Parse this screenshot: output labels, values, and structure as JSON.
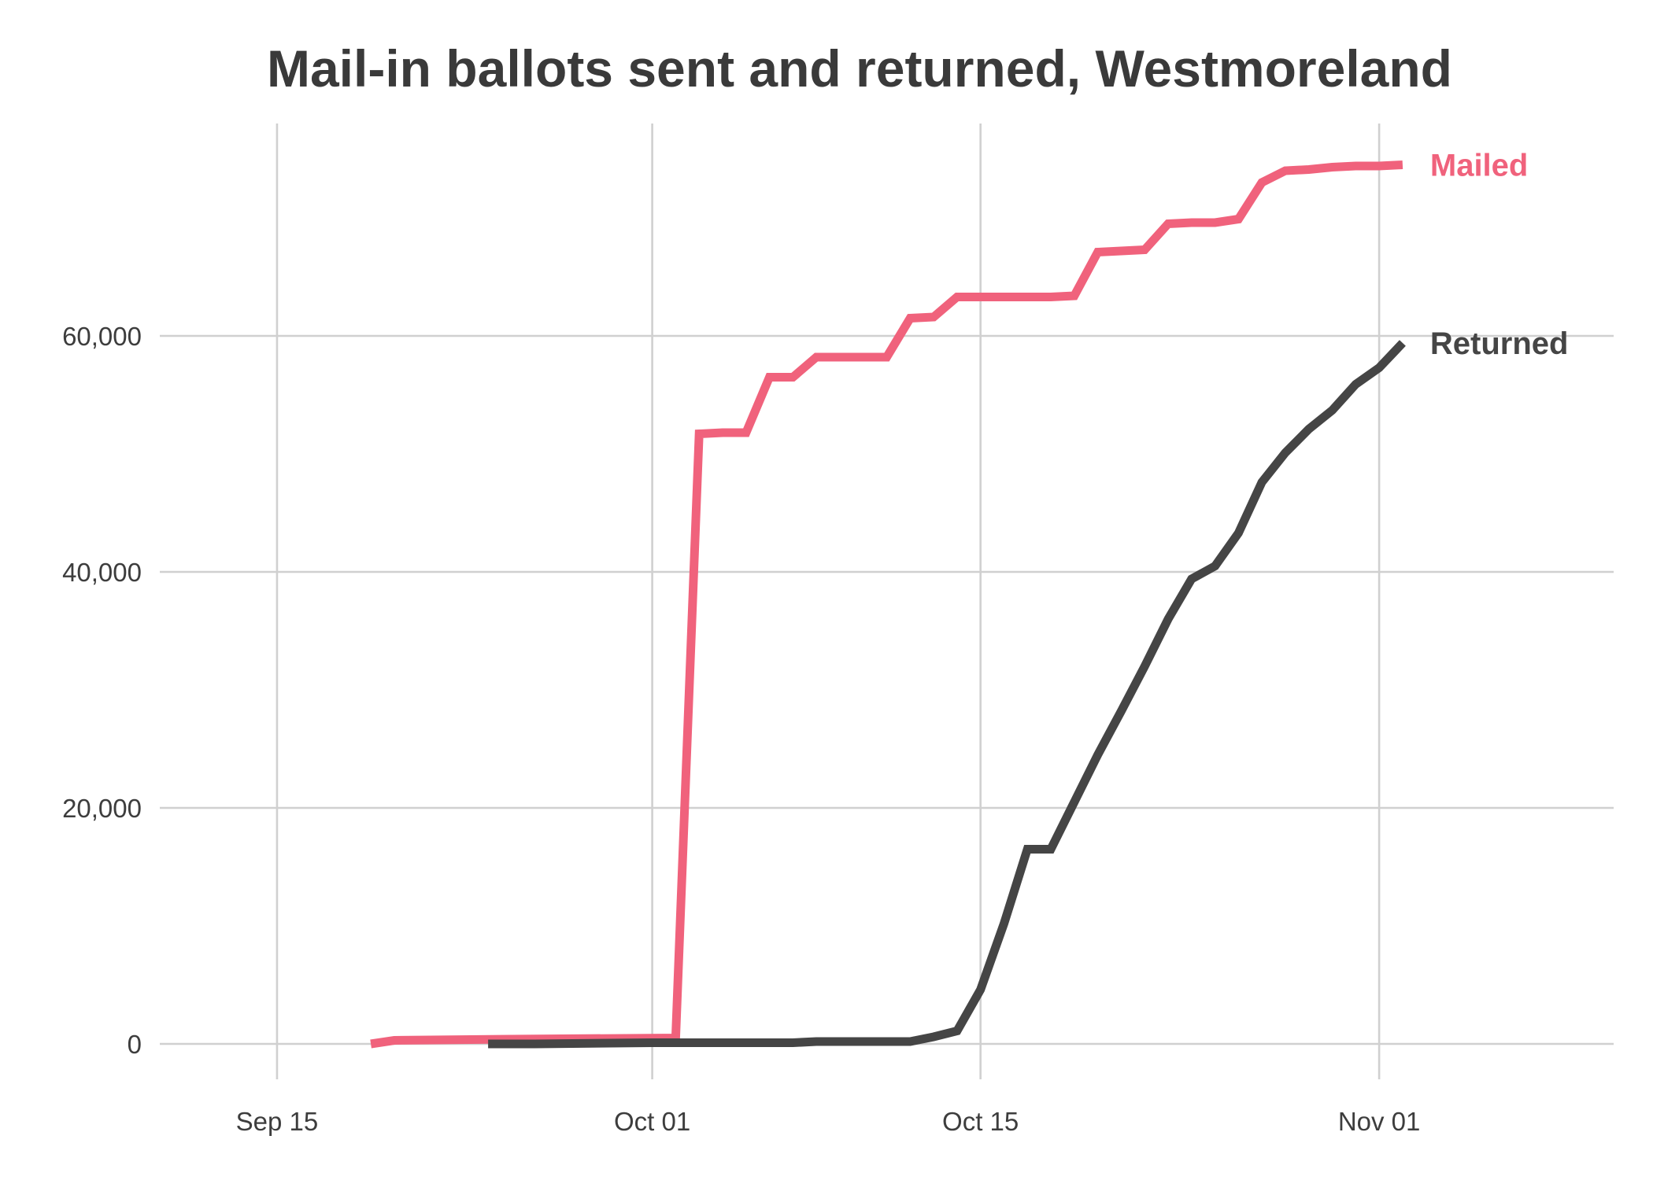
{
  "colors": {
    "mailed": "#f0627c",
    "returned": "#454545"
  },
  "chart_data": {
    "type": "line",
    "title": "Mail-in ballots sent and returned, Westmoreland",
    "xlabel": "",
    "ylabel": "",
    "x_is_date": true,
    "xlim": [
      "2020-09-10",
      "2020-11-11"
    ],
    "ylim": [
      -3000,
      78000
    ],
    "grid": true,
    "legend": "direct-labels-right",
    "x_ticks": [
      {
        "value": "2020-09-15",
        "label": "Sep 15"
      },
      {
        "value": "2020-10-01",
        "label": "Oct 01"
      },
      {
        "value": "2020-10-15",
        "label": "Oct 15"
      },
      {
        "value": "2020-11-01",
        "label": "Nov 01"
      }
    ],
    "y_ticks": [
      {
        "value": 0,
        "label": "0"
      },
      {
        "value": 20000,
        "label": "20,000"
      },
      {
        "value": 40000,
        "label": "40,000"
      },
      {
        "value": 60000,
        "label": "60,000"
      }
    ],
    "series": [
      {
        "name": "Mailed",
        "color": "#f0627c",
        "points": [
          {
            "x": "2020-09-19",
            "y": 0
          },
          {
            "x": "2020-09-20",
            "y": 300
          },
          {
            "x": "2020-09-25",
            "y": 400
          },
          {
            "x": "2020-10-02",
            "y": 500
          },
          {
            "x": "2020-10-03",
            "y": 51700
          },
          {
            "x": "2020-10-04",
            "y": 51800
          },
          {
            "x": "2020-10-05",
            "y": 51800
          },
          {
            "x": "2020-10-06",
            "y": 56500
          },
          {
            "x": "2020-10-07",
            "y": 56500
          },
          {
            "x": "2020-10-08",
            "y": 58200
          },
          {
            "x": "2020-10-09",
            "y": 58200
          },
          {
            "x": "2020-10-10",
            "y": 58200
          },
          {
            "x": "2020-10-11",
            "y": 58200
          },
          {
            "x": "2020-10-12",
            "y": 61500
          },
          {
            "x": "2020-10-13",
            "y": 61600
          },
          {
            "x": "2020-10-14",
            "y": 63300
          },
          {
            "x": "2020-10-15",
            "y": 63300
          },
          {
            "x": "2020-10-18",
            "y": 63300
          },
          {
            "x": "2020-10-19",
            "y": 63400
          },
          {
            "x": "2020-10-20",
            "y": 67100
          },
          {
            "x": "2020-10-21",
            "y": 67200
          },
          {
            "x": "2020-10-22",
            "y": 67300
          },
          {
            "x": "2020-10-23",
            "y": 69500
          },
          {
            "x": "2020-10-24",
            "y": 69600
          },
          {
            "x": "2020-10-25",
            "y": 69600
          },
          {
            "x": "2020-10-26",
            "y": 69900
          },
          {
            "x": "2020-10-27",
            "y": 73000
          },
          {
            "x": "2020-10-28",
            "y": 74000
          },
          {
            "x": "2020-10-29",
            "y": 74100
          },
          {
            "x": "2020-10-30",
            "y": 74300
          },
          {
            "x": "2020-10-31",
            "y": 74400
          },
          {
            "x": "2020-11-01",
            "y": 74400
          },
          {
            "x": "2020-11-02",
            "y": 74500
          }
        ]
      },
      {
        "name": "Returned",
        "color": "#454545",
        "points": [
          {
            "x": "2020-09-24",
            "y": 0
          },
          {
            "x": "2020-09-26",
            "y": 0
          },
          {
            "x": "2020-10-01",
            "y": 100
          },
          {
            "x": "2020-10-07",
            "y": 100
          },
          {
            "x": "2020-10-08",
            "y": 200
          },
          {
            "x": "2020-10-12",
            "y": 200
          },
          {
            "x": "2020-10-13",
            "y": 600
          },
          {
            "x": "2020-10-14",
            "y": 1100
          },
          {
            "x": "2020-10-15",
            "y": 4600
          },
          {
            "x": "2020-10-16",
            "y": 10200
          },
          {
            "x": "2020-10-17",
            "y": 16500
          },
          {
            "x": "2020-10-18",
            "y": 16500
          },
          {
            "x": "2020-10-19",
            "y": 20500
          },
          {
            "x": "2020-10-20",
            "y": 24500
          },
          {
            "x": "2020-10-21",
            "y": 28200
          },
          {
            "x": "2020-10-22",
            "y": 32000
          },
          {
            "x": "2020-10-23",
            "y": 36000
          },
          {
            "x": "2020-10-24",
            "y": 39400
          },
          {
            "x": "2020-10-25",
            "y": 40500
          },
          {
            "x": "2020-10-26",
            "y": 43300
          },
          {
            "x": "2020-10-27",
            "y": 47600
          },
          {
            "x": "2020-10-28",
            "y": 50100
          },
          {
            "x": "2020-10-29",
            "y": 52100
          },
          {
            "x": "2020-10-30",
            "y": 53700
          },
          {
            "x": "2020-10-31",
            "y": 55900
          },
          {
            "x": "2020-11-01",
            "y": 57300
          },
          {
            "x": "2020-11-02",
            "y": 59400
          }
        ]
      }
    ]
  }
}
